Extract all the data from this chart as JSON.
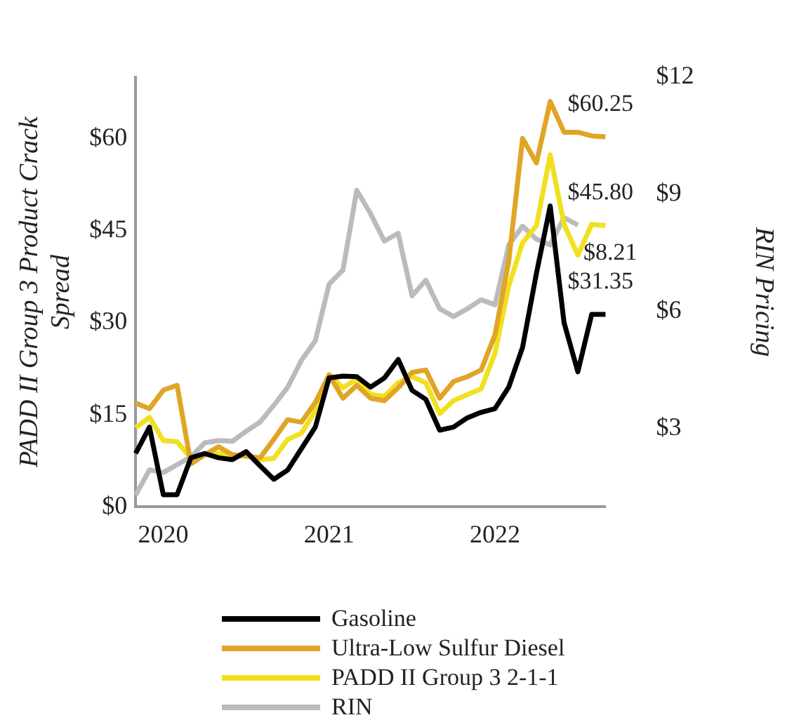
{
  "chart_data": {
    "type": "line",
    "ylabel": "PADD II Group 3 Product Crack Spread",
    "y2label": "RIN Pricing",
    "categories": [
      null,
      null,
      "2020",
      null,
      null,
      null,
      null,
      null,
      null,
      null,
      null,
      null,
      null,
      null,
      "2021",
      null,
      null,
      null,
      null,
      null,
      null,
      null,
      null,
      null,
      null,
      null,
      "2022",
      null,
      null,
      null,
      null,
      null,
      null,
      null,
      null
    ],
    "series": [
      {
        "name": "Gasoline",
        "color": "#000000",
        "values": [
          8.7,
          13,
          2,
          2,
          8,
          8.7,
          8,
          7.7,
          9,
          6.7,
          4.5,
          6,
          9.5,
          13,
          21,
          21.3,
          21.2,
          19.5,
          21,
          24,
          19,
          17.5,
          12.5,
          13,
          14.5,
          15.4,
          16,
          19.5,
          26,
          38,
          49,
          30,
          22,
          31.35,
          31.35
        ],
        "value_labels": [
          null,
          null,
          null,
          null,
          null,
          null,
          null,
          null,
          null,
          null,
          null,
          null,
          null,
          null,
          null,
          null,
          null,
          null,
          null,
          null,
          null,
          null,
          null,
          null,
          null,
          null,
          null,
          null,
          null,
          null,
          null,
          null,
          null,
          null,
          "$31.35"
        ]
      },
      {
        "name": "Ultra-Low Sulfur Diesel",
        "color": "#e0a526",
        "values": [
          16.9,
          16,
          19,
          19.8,
          7,
          8.5,
          9.8,
          8.5,
          8.3,
          8,
          11,
          14.2,
          13.8,
          17,
          21.5,
          17.7,
          19.8,
          17.7,
          17.3,
          19.4,
          21.9,
          22.3,
          17.7,
          20.4,
          21.2,
          22.3,
          28,
          40,
          60,
          56,
          66,
          61,
          61,
          60.4,
          60.25
        ],
        "value_labels": [
          null,
          null,
          null,
          null,
          null,
          null,
          null,
          null,
          null,
          null,
          null,
          null,
          null,
          null,
          null,
          null,
          null,
          null,
          null,
          null,
          null,
          null,
          null,
          null,
          null,
          null,
          null,
          null,
          null,
          null,
          null,
          null,
          null,
          null,
          "$60.25"
        ]
      },
      {
        "name": "PADD II Group 3 2-1-1",
        "color": "#f0e020",
        "values": [
          12.9,
          14.6,
          10.8,
          10.6,
          8,
          8.5,
          8.7,
          8.3,
          8.3,
          7.7,
          7.9,
          11,
          12,
          15.6,
          21.5,
          19.4,
          20.8,
          18.3,
          18,
          20.2,
          21.2,
          20.2,
          15.2,
          17.3,
          18.3,
          19.2,
          25,
          36,
          43,
          45.8,
          57.3,
          46,
          41,
          46,
          45.8
        ],
        "value_labels": [
          null,
          null,
          null,
          null,
          null,
          null,
          null,
          null,
          null,
          null,
          null,
          null,
          null,
          null,
          null,
          null,
          null,
          null,
          null,
          null,
          null,
          null,
          null,
          null,
          null,
          null,
          null,
          null,
          null,
          null,
          null,
          null,
          null,
          null,
          "$45.80"
        ]
      },
      {
        "name": "RIN",
        "color": "#bbbbbb",
        "axis": "y2",
        "values": [
          1.3,
          1.95,
          1.88,
          2.08,
          2.28,
          2.64,
          2.7,
          2.68,
          2.94,
          3.17,
          3.6,
          4.06,
          4.75,
          5.25,
          6.7,
          7.06,
          9.1,
          8.5,
          7.8,
          8.0,
          6.4,
          6.8,
          6.07,
          5.87,
          6.07,
          6.3,
          6.17,
          7.7,
          8.18,
          7.85,
          7.7,
          8.4,
          8.21,
          null,
          null
        ],
        "value_labels": [
          null,
          null,
          null,
          null,
          null,
          null,
          null,
          null,
          null,
          null,
          null,
          null,
          null,
          null,
          null,
          null,
          null,
          null,
          null,
          null,
          null,
          null,
          null,
          null,
          null,
          null,
          null,
          null,
          null,
          null,
          null,
          null,
          "$8.21",
          null,
          null
        ]
      }
    ],
    "ylim": [
      0,
      70
    ],
    "yticks": [
      {
        "value": 0,
        "label": "$0"
      },
      {
        "value": 15,
        "label": "$15"
      },
      {
        "value": 30,
        "label": "$30"
      },
      {
        "value": 45,
        "label": "$45"
      },
      {
        "value": 60,
        "label": "$60"
      }
    ],
    "y2lim": [
      1,
      12
    ],
    "y2ticks": [
      {
        "value": 3,
        "label": "$3"
      },
      {
        "value": 6,
        "label": "$6"
      },
      {
        "value": 9,
        "label": "$9"
      },
      {
        "value": 12,
        "label": "$12"
      }
    ],
    "grid": false,
    "legend": "bottom",
    "marker": "none",
    "line_style": "solid"
  }
}
